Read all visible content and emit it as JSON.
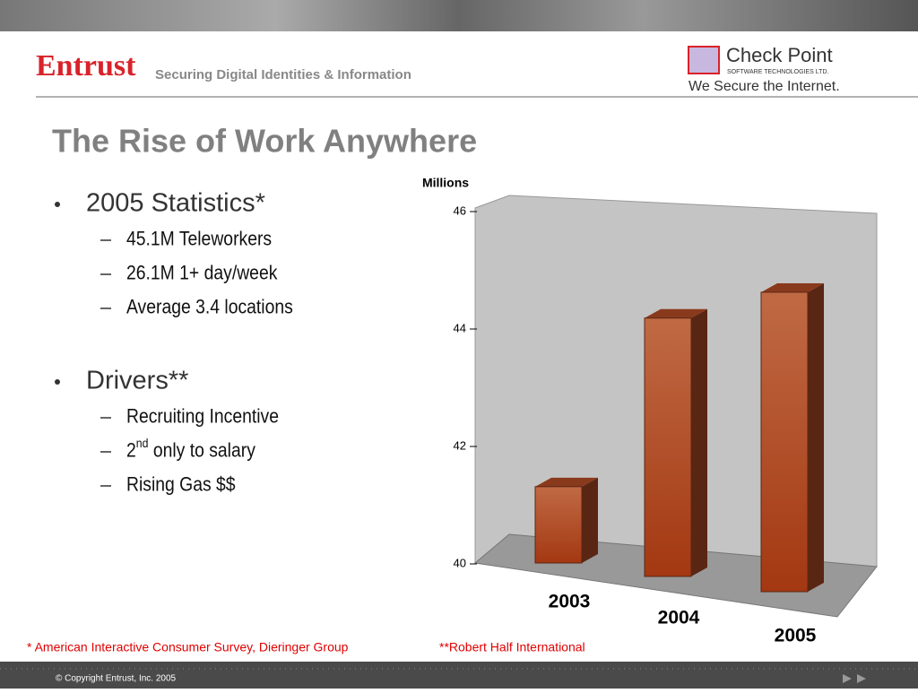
{
  "header": {
    "brand": "Entrust",
    "tagline": "Securing Digital Identities & Information",
    "partner": "Check Point",
    "partner_sub": "SOFTWARE TECHNOLOGIES LTD.",
    "partner_slogan": "We Secure the Internet."
  },
  "title": "The Rise of Work Anywhere",
  "bullets": [
    {
      "text": "2005 Statistics*",
      "items": [
        {
          "text": "45.1M Teleworkers"
        },
        {
          "text": "26.1M 1+ day/week"
        },
        {
          "text": "Average 3.4 locations"
        }
      ]
    },
    {
      "text": "Drivers**",
      "items": [
        {
          "text": "Recruiting Incentive"
        },
        {
          "text": "2",
          "sup": "nd",
          "rest": " only to salary"
        },
        {
          "text": "Rising Gas $$"
        }
      ]
    }
  ],
  "chart_data": {
    "type": "bar3d",
    "ylabel": "Millions",
    "categories": [
      "2003",
      "2004",
      "2005"
    ],
    "values": [
      41.3,
      44.4,
      45.1
    ],
    "color": "#b5522a",
    "ylim": [
      40,
      46
    ],
    "yticks": [
      40,
      42,
      44,
      46
    ]
  },
  "footnotes": [
    "* American Interactive Consumer Survey, Dieringer Group",
    "**Robert Half International"
  ],
  "footer": "© Copyright Entrust, Inc. 2005"
}
